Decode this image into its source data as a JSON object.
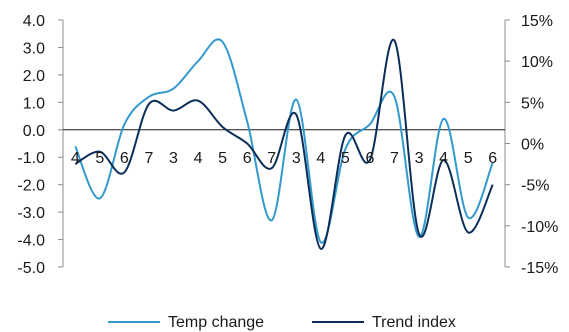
{
  "chart_data": {
    "type": "line",
    "categories": [
      "4",
      "5",
      "6",
      "7",
      "3",
      "4",
      "5",
      "6",
      "7",
      "3",
      "4",
      "5",
      "6",
      "7",
      "3",
      "4",
      "5",
      "6"
    ],
    "y_left": {
      "ylim": [
        -5.0,
        4.0
      ],
      "ticks": [
        4.0,
        3.0,
        2.0,
        1.0,
        0.0,
        -1.0,
        -2.0,
        -3.0,
        -4.0,
        -5.0
      ],
      "tick_labels": [
        "4.0",
        "3.0",
        "2.0",
        "1.0",
        "0.0",
        "-1.0",
        "-2.0",
        "-3.0",
        "-4.0",
        "-5.0"
      ]
    },
    "y_right": {
      "ylim": [
        -15,
        15
      ],
      "ticks": [
        15,
        10,
        5,
        0,
        -5,
        -10,
        -15
      ],
      "tick_labels": [
        "15%",
        "10%",
        "5%",
        "0%",
        "-5%",
        "-10%",
        "-15%"
      ]
    },
    "grid": false,
    "legend_position": "bottom",
    "series": [
      {
        "name": "Temp change",
        "axis": "left",
        "color": "#3399cc",
        "values": [
          -0.6,
          -2.5,
          0.2,
          1.2,
          1.5,
          2.5,
          3.2,
          0.3,
          -3.3,
          1.1,
          -4.1,
          -0.7,
          0.2,
          1.2,
          -3.9,
          0.4,
          -3.2,
          -1.2
        ]
      },
      {
        "name": "Trend index",
        "axis": "right",
        "color": "#0b2e59",
        "values": [
          -2.5,
          -1.0,
          -3.5,
          4.8,
          4.0,
          5.2,
          2.0,
          0.0,
          -3.0,
          3.5,
          -12.8,
          1.0,
          -2.0,
          12.5,
          -11.0,
          -2.0,
          -10.8,
          -5.0
        ]
      }
    ]
  }
}
